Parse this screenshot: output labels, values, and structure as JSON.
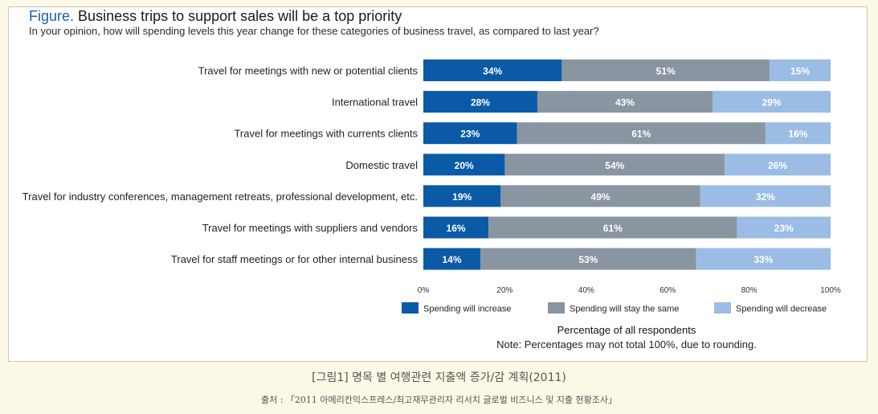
{
  "figure": {
    "prefix": "Figure.",
    "title": "Business trips to support sales will be a top priority",
    "subtitle": "In your opinion, how will spending levels this year change for these categories of business travel, as compared to last year?",
    "xlabel": "Percentage of all respondents",
    "note": "Note: Percentages may not total 100%, due to rounding."
  },
  "caption": {
    "korean_title": "[그림1] 명목 별 여행관련 지출액 증가/감 계획(2011)",
    "source": "출처 : 「2011 아메리칸익스프레스/최고재무관리자 리서치 글로벌 비즈니스 및 지출 현황조사」"
  },
  "colors": {
    "increase": "#0b5aa7",
    "same": "#8995a0",
    "decrease": "#9bbce4",
    "title_accent": "#1f5fa8"
  },
  "chart_data": {
    "type": "bar",
    "orientation": "horizontal-stacked",
    "categories": [
      "Travel for meetings with new or potential clients",
      "International travel",
      "Travel for meetings with currents clients",
      "Domestic travel",
      "Travel for industry conferences, management retreats, professional development, etc.",
      "Travel for meetings with suppliers and vendors",
      "Travel for staff meetings or for other internal business"
    ],
    "series": [
      {
        "name": "Spending will increase",
        "values": [
          34,
          28,
          23,
          20,
          19,
          16,
          14
        ]
      },
      {
        "name": "Spending will stay the same",
        "values": [
          51,
          43,
          61,
          54,
          49,
          61,
          53
        ]
      },
      {
        "name": "Spending will decrease",
        "values": [
          15,
          29,
          16,
          26,
          32,
          23,
          33
        ]
      }
    ],
    "xlim": [
      0,
      100
    ],
    "xticks": [
      "0%",
      "20%",
      "40%",
      "60%",
      "80%",
      "100%"
    ],
    "xlabel": "Percentage of all respondents",
    "legend_position": "bottom",
    "grid": false,
    "data_label_suffix": "%"
  }
}
